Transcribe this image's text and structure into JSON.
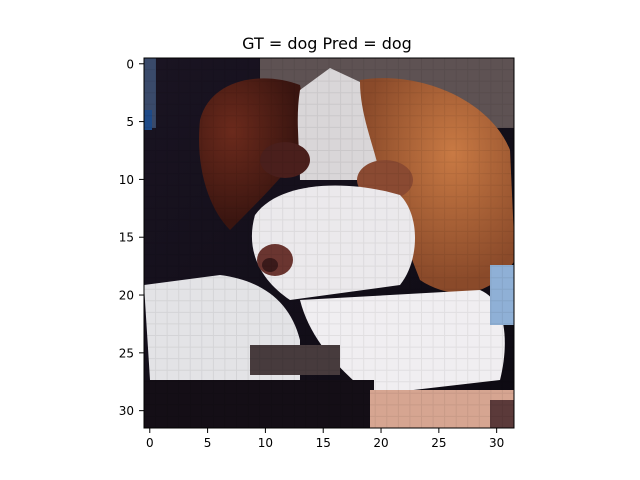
{
  "figure": {
    "title": "GT = dog Pred = dog",
    "image_description_grid": "32x32 pixel RGB image (CIFAR-like) of a brown and white dog",
    "x_axis": {
      "ticks": [
        0,
        5,
        10,
        15,
        20,
        25,
        30
      ],
      "range": [
        -0.5,
        31.5
      ]
    },
    "y_axis": {
      "ticks": [
        0,
        5,
        10,
        15,
        20,
        25,
        30
      ],
      "range": [
        -0.5,
        31.5
      ],
      "inverted": true
    }
  }
}
